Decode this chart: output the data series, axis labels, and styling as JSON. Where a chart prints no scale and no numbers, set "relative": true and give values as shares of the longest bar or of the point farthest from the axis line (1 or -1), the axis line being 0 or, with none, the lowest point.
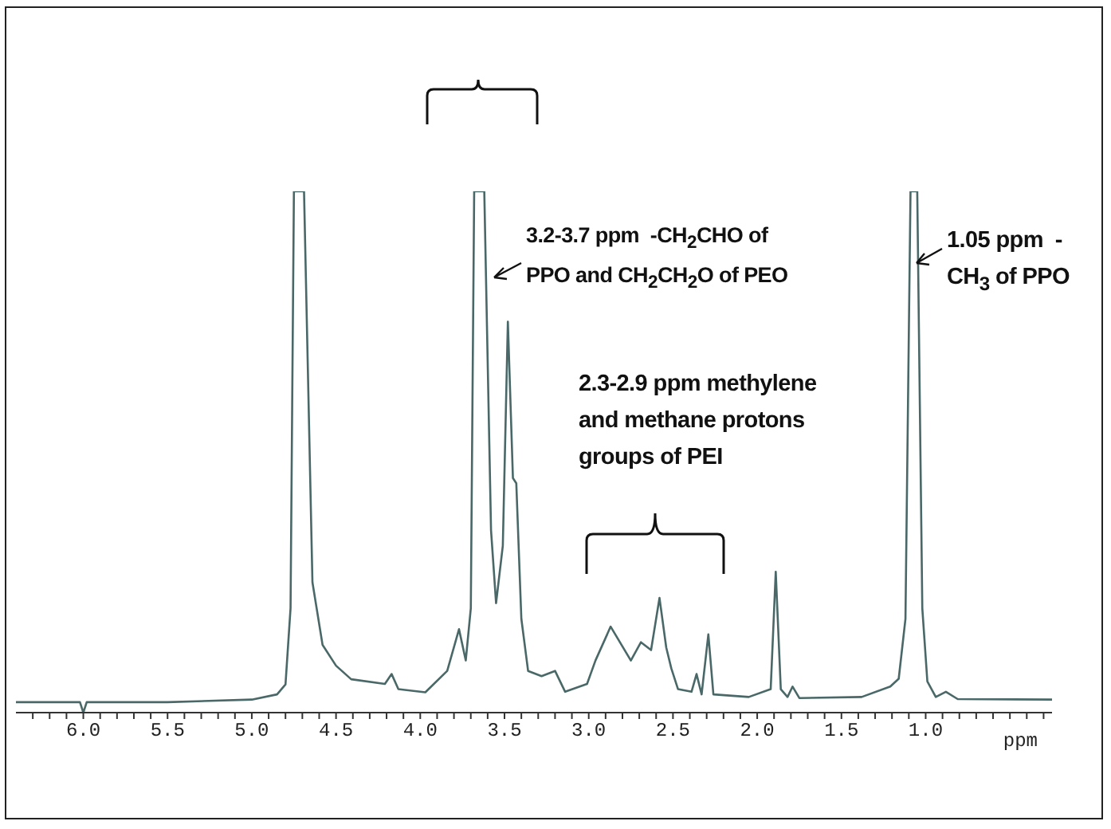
{
  "chart_data": {
    "type": "line",
    "relative": true,
    "xlabel": "ppm",
    "xlim": [
      6.4,
      0.25
    ],
    "xticks": [
      {
        "value": 6.3,
        "label": null
      },
      {
        "value": 6.2,
        "label": null
      },
      {
        "value": 6.1,
        "label": null
      },
      {
        "value": 6.0,
        "label": "6.0"
      },
      {
        "value": 5.9,
        "label": null
      },
      {
        "value": 5.8,
        "label": null
      },
      {
        "value": 5.7,
        "label": null
      },
      {
        "value": 5.6,
        "label": null
      },
      {
        "value": 5.5,
        "label": "5.5"
      },
      {
        "value": 5.4,
        "label": null
      },
      {
        "value": 5.3,
        "label": null
      },
      {
        "value": 5.2,
        "label": null
      },
      {
        "value": 5.1,
        "label": null
      },
      {
        "value": 5.0,
        "label": "5.0"
      },
      {
        "value": 4.9,
        "label": null
      },
      {
        "value": 4.8,
        "label": null
      },
      {
        "value": 4.7,
        "label": null
      },
      {
        "value": 4.6,
        "label": null
      },
      {
        "value": 4.5,
        "label": "4.5"
      },
      {
        "value": 4.4,
        "label": null
      },
      {
        "value": 4.3,
        "label": null
      },
      {
        "value": 4.2,
        "label": null
      },
      {
        "value": 4.1,
        "label": null
      },
      {
        "value": 4.0,
        "label": "4.0"
      },
      {
        "value": 3.9,
        "label": null
      },
      {
        "value": 3.8,
        "label": null
      },
      {
        "value": 3.7,
        "label": null
      },
      {
        "value": 3.6,
        "label": null
      },
      {
        "value": 3.5,
        "label": "3.5"
      },
      {
        "value": 3.4,
        "label": null
      },
      {
        "value": 3.3,
        "label": null
      },
      {
        "value": 3.2,
        "label": null
      },
      {
        "value": 3.1,
        "label": null
      },
      {
        "value": 3.0,
        "label": "3.0"
      },
      {
        "value": 2.9,
        "label": null
      },
      {
        "value": 2.8,
        "label": null
      },
      {
        "value": 2.7,
        "label": null
      },
      {
        "value": 2.6,
        "label": null
      },
      {
        "value": 2.5,
        "label": "2.5"
      },
      {
        "value": 2.4,
        "label": null
      },
      {
        "value": 2.3,
        "label": null
      },
      {
        "value": 2.2,
        "label": null
      },
      {
        "value": 2.1,
        "label": null
      },
      {
        "value": 2.0,
        "label": "2.0"
      },
      {
        "value": 1.9,
        "label": null
      },
      {
        "value": 1.8,
        "label": null
      },
      {
        "value": 1.7,
        "label": null
      },
      {
        "value": 1.6,
        "label": null
      },
      {
        "value": 1.5,
        "label": "1.5"
      },
      {
        "value": 1.4,
        "label": null
      },
      {
        "value": 1.3,
        "label": null
      },
      {
        "value": 1.2,
        "label": null
      },
      {
        "value": 1.1,
        "label": null
      },
      {
        "value": 1.0,
        "label": "1.0"
      },
      {
        "value": 0.9,
        "label": null
      },
      {
        "value": 0.8,
        "label": null
      },
      {
        "value": 0.7,
        "label": null
      },
      {
        "value": 0.6,
        "label": null
      },
      {
        "value": 0.5,
        "label": null
      },
      {
        "value": 0.4,
        "label": null
      },
      {
        "value": 0.3,
        "label": null
      }
    ],
    "series": [
      {
        "color": "#4a6868",
        "x": [
          6.4,
          6.1,
          6.02,
          6.0,
          5.98,
          5.5,
          5.0,
          4.85,
          4.8,
          4.77,
          4.75,
          4.69,
          4.64,
          4.58,
          4.5,
          4.41,
          4.21,
          4.17,
          4.13,
          3.97,
          3.84,
          3.77,
          3.73,
          3.7,
          3.68,
          3.62,
          3.58,
          3.55,
          3.51,
          3.48,
          3.45,
          3.43,
          3.4,
          3.36,
          3.28,
          3.2,
          3.14,
          3.01,
          2.96,
          2.87,
          2.75,
          2.69,
          2.63,
          2.58,
          2.54,
          2.51,
          2.47,
          2.39,
          2.36,
          2.33,
          2.29,
          2.26,
          2.05,
          1.92,
          1.89,
          1.86,
          1.82,
          1.79,
          1.75,
          1.38,
          1.21,
          1.16,
          1.12,
          1.09,
          1.05,
          1.02,
          0.99,
          0.94,
          0.88,
          0.81,
          0.25
        ],
        "values": [
          0.02,
          0.02,
          0.02,
          0.0,
          0.02,
          0.02,
          0.025,
          0.035,
          0.054,
          0.2,
          1,
          1,
          0.25,
          0.13,
          0.09,
          0.064,
          0.055,
          0.074,
          0.045,
          0.039,
          0.08,
          0.16,
          0.1,
          0.2,
          1,
          1,
          0.35,
          0.21,
          0.32,
          0.75,
          0.45,
          0.44,
          0.18,
          0.08,
          0.07,
          0.08,
          0.04,
          0.055,
          0.1,
          0.165,
          0.1,
          0.135,
          0.12,
          0.22,
          0.125,
          0.085,
          0.045,
          0.04,
          0.074,
          0.035,
          0.15,
          0.035,
          0.03,
          0.045,
          0.27,
          0.045,
          0.03,
          0.05,
          0.028,
          0.03,
          0.05,
          0.065,
          0.18,
          1,
          1,
          0.2,
          0.06,
          0.03,
          0.04,
          0.026,
          0.025
        ]
      }
    ],
    "annotations": [
      "3.2-3.7 ppm  -CH$_{2}$CHO of PPO and CH$_{2}$CH$_{2}$O of PEO",
      "2.3-2.9 ppm methylene and methane protons groups of PEI",
      "1.05 ppm  - CH$_{3}$ of PPO"
    ]
  }
}
